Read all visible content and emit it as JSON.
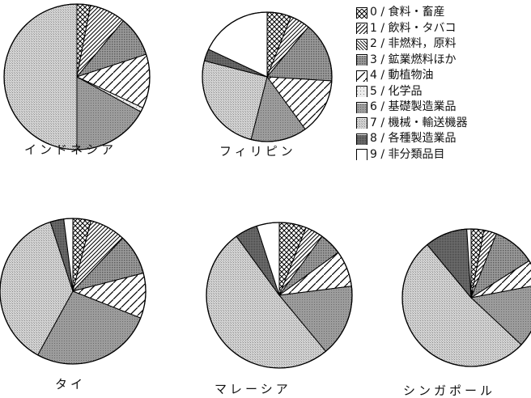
{
  "legend": [
    "0 / 食料・畜産",
    "1 / 飲料・タバコ",
    "2 / 非燃料，原料",
    "3 / 鉱業燃料ほか",
    "4 / 動植物油",
    "5 / 化学品",
    "6 / 基礎製造業品",
    "7 / 機械・輸送機器",
    "8 / 各種製造業品",
    "9 / 非分類品目"
  ],
  "chart_data": [
    {
      "type": "pie",
      "title": "インドネシア",
      "categories": [
        "0",
        "1",
        "2",
        "3",
        "4",
        "5",
        "6",
        "7",
        "8",
        "9"
      ],
      "values": [
        3,
        8,
        0,
        9,
        12,
        1,
        17,
        50,
        0,
        0
      ]
    },
    {
      "type": "pie",
      "title": "フィリピン",
      "categories": [
        "0",
        "1",
        "2",
        "3",
        "4",
        "5",
        "6",
        "7",
        "8",
        "9"
      ],
      "values": [
        6,
        5,
        0,
        15,
        14,
        0,
        14,
        25,
        3,
        18
      ]
    },
    {
      "type": "pie",
      "title": "タイ",
      "categories": [
        "0",
        "1",
        "2",
        "3",
        "4",
        "5",
        "6",
        "7",
        "8",
        "9"
      ],
      "values": [
        4,
        8,
        0,
        9,
        10,
        0,
        27,
        37,
        3,
        2
      ]
    },
    {
      "type": "pie",
      "title": "マレーシア",
      "categories": [
        "0",
        "1",
        "2",
        "3",
        "4",
        "5",
        "6",
        "7",
        "8",
        "9"
      ],
      "values": [
        6,
        4,
        0,
        5,
        8,
        0,
        16,
        51,
        5,
        5
      ]
    },
    {
      "type": "pie",
      "title": "シンガポール",
      "categories": [
        "0",
        "1",
        "2",
        "3",
        "4",
        "5",
        "6",
        "7",
        "8",
        "9"
      ],
      "values": [
        3,
        3,
        0,
        10,
        6,
        0,
        15,
        52,
        10,
        1
      ]
    }
  ]
}
